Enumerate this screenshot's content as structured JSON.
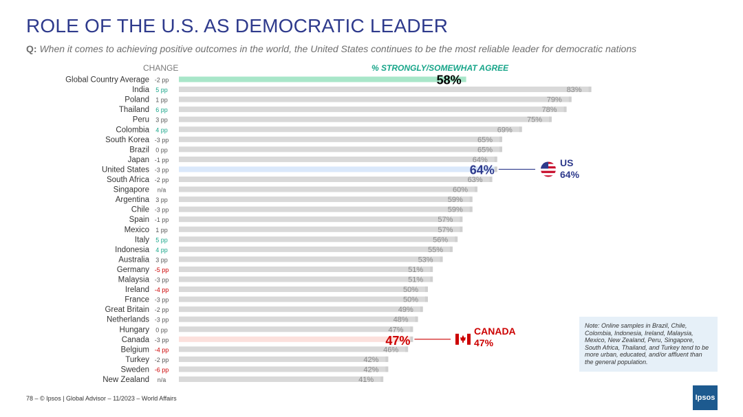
{
  "header": {
    "title": "ROLE OF THE U.S. AS DEMOCRATIC LEADER",
    "question_prefix": "Q:",
    "question_text": "When it comes to achieving positive outcomes in the world, the United States continues to be the most reliable leader for democratic nations"
  },
  "colors": {
    "title": "#2e3a8c",
    "bar_default": "#d9d9d9",
    "bar_global": "#a8e6c9",
    "bar_us": "#dae8fb",
    "bar_canada": "#fce0dc",
    "change_positive": "#17a589",
    "change_negative": "#cc0000",
    "change_neutral": "#555555"
  },
  "chart_data": {
    "type": "bar",
    "orientation": "horizontal",
    "title": "% STRONGLY/SOMEWHAT AGREE",
    "change_header": "CHANGE",
    "categories": [
      "Global Country Average",
      "India",
      "Poland",
      "Thailand",
      "Peru",
      "Colombia",
      "South Korea",
      "Brazil",
      "Japan",
      "United States",
      "South Africa",
      "Singapore",
      "Argentina",
      "Chile",
      "Spain",
      "Mexico",
      "Italy",
      "Indonesia",
      "Australia",
      "Germany",
      "Malaysia",
      "Ireland",
      "France",
      "Great Britain",
      "Netherlands",
      "Hungary",
      "Canada",
      "Belgium",
      "Turkey",
      "Sweden",
      "New Zealand"
    ],
    "values": [
      58,
      83,
      79,
      78,
      75,
      69,
      65,
      65,
      64,
      64,
      63,
      60,
      59,
      59,
      57,
      57,
      56,
      55,
      53,
      51,
      51,
      50,
      50,
      49,
      48,
      47,
      47,
      46,
      42,
      42,
      41
    ],
    "changes": [
      "-2 pp",
      "5 pp",
      "1 pp",
      "6 pp",
      "3 pp",
      "4 pp",
      "-3 pp",
      "0 pp",
      "-1 pp",
      "-3 pp",
      "-2 pp",
      "n/a",
      "3 pp",
      "-3 pp",
      "-1 pp",
      "1 pp",
      "5 pp",
      "4 pp",
      "3 pp",
      "-5 pp",
      "-3 pp",
      "-4 pp",
      "-3 pp",
      "-2 pp",
      "-3 pp",
      "0 pp",
      "-3 pp",
      "-4 pp",
      "-2 pp",
      "-6 pp",
      "n/a"
    ],
    "change_sentiment": [
      "neutral",
      "positive",
      "neutral",
      "positive",
      "neutral",
      "positive",
      "neutral",
      "neutral",
      "neutral",
      "neutral",
      "neutral",
      "neutral",
      "neutral",
      "neutral",
      "neutral",
      "neutral",
      "positive",
      "positive",
      "neutral",
      "negative",
      "neutral",
      "negative",
      "neutral",
      "neutral",
      "neutral",
      "neutral",
      "neutral",
      "negative",
      "neutral",
      "negative",
      "neutral"
    ],
    "value_labels": [
      "58%",
      "83%",
      "79%",
      "78%",
      "75%",
      "69%",
      "65%",
      "65%",
      "64%",
      "64%",
      "63%",
      "60%",
      "59%",
      "59%",
      "57%",
      "57%",
      "56%",
      "55%",
      "53%",
      "51%",
      "51%",
      "50%",
      "50%",
      "49%",
      "48%",
      "47%",
      "47%",
      "46%",
      "42%",
      "42%",
      "41%"
    ],
    "highlights": {
      "Global Country Average": "global",
      "United States": "us",
      "Canada": "canada"
    },
    "xlim": [
      0,
      100
    ]
  },
  "callouts": {
    "us": {
      "name": "US",
      "value": "64%"
    },
    "canada": {
      "name": "CANADA",
      "value": "47%"
    }
  },
  "note": "Note: Online samples in Brazil, Chile, Colombia, Indonesia, Ireland, Malaysia, Mexico, New Zealand, Peru, Singapore, South Africa, Thailand, and Turkey tend to be more urban, educated, and/or affluent than the general population.",
  "footer": {
    "page": "78 –",
    "text": "© Ipsos | Global Advisor – 11/2023 – World Affairs"
  },
  "logo": "Ipsos"
}
